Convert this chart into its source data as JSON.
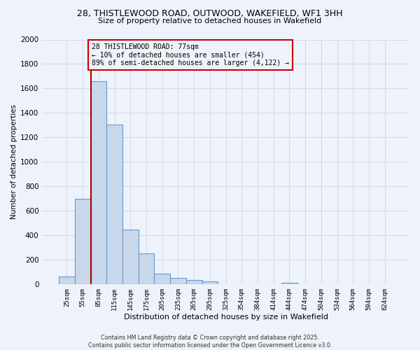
{
  "title_line1": "28, THISTLEWOOD ROAD, OUTWOOD, WAKEFIELD, WF1 3HH",
  "title_line2": "Size of property relative to detached houses in Wakefield",
  "xlabel": "Distribution of detached houses by size in Wakefield",
  "ylabel": "Number of detached properties",
  "categories": [
    "25sqm",
    "55sqm",
    "85sqm",
    "115sqm",
    "145sqm",
    "175sqm",
    "205sqm",
    "235sqm",
    "265sqm",
    "295sqm",
    "325sqm",
    "354sqm",
    "384sqm",
    "414sqm",
    "444sqm",
    "474sqm",
    "504sqm",
    "534sqm",
    "564sqm",
    "594sqm",
    "624sqm"
  ],
  "values": [
    65,
    700,
    1660,
    1305,
    450,
    255,
    85,
    50,
    35,
    25,
    0,
    0,
    0,
    0,
    15,
    0,
    0,
    0,
    0,
    0,
    0
  ],
  "bar_color": "#c8d8ea",
  "bar_edge_color": "#6699cc",
  "grid_color": "#d0d8e8",
  "bg_color": "#eef2fa",
  "annotation_box_color": "#cc0000",
  "annotation_text": "28 THISTLEWOOD ROAD: 77sqm\n← 10% of detached houses are smaller (454)\n89% of semi-detached houses are larger (4,122) →",
  "vline_x": 1.5,
  "vline_color": "#aa0000",
  "ylim": [
    0,
    2000
  ],
  "yticks": [
    0,
    200,
    400,
    600,
    800,
    1000,
    1200,
    1400,
    1600,
    1800,
    2000
  ],
  "footer_line1": "Contains HM Land Registry data © Crown copyright and database right 2025.",
  "footer_line2": "Contains public sector information licensed under the Open Government Licence v3.0."
}
